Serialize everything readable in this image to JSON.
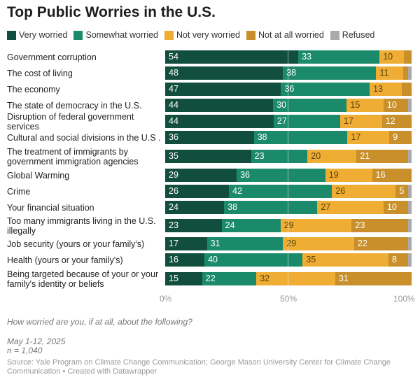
{
  "chart_data": {
    "type": "stacked-bar-horizontal",
    "title": "Top Public Worries in the U.S.",
    "xlim": [
      0,
      100
    ],
    "xticks": [
      "0%",
      "50%",
      "100%"
    ],
    "legend_position": "top",
    "series": [
      {
        "name": "Very worried",
        "color": "#124e3d",
        "label_color": "#ffffff"
      },
      {
        "name": "Somewhat worried",
        "color": "#1b8a6b",
        "label_color": "#ffffff"
      },
      {
        "name": "Not very worried",
        "color": "#efad33",
        "label_color": "#5a4210"
      },
      {
        "name": "Not at all worried",
        "color": "#c88f2a",
        "label_color": "#ffffff"
      },
      {
        "name": "Refused",
        "color": "#aaaaaa",
        "label_color": "#ffffff"
      }
    ],
    "categories": [
      "Government corruption",
      "The cost of living",
      "The economy",
      "The state of democracy in the U.S.",
      "Disruption of federal government services",
      "Cultural and social divisions in the U.S .",
      "The treatment of immigrants by government immigration agencies",
      "Global Warming",
      "Crime",
      "Your financial situation",
      "Too many immigrants living in the U.S. illegally",
      "Job security (yours or your family's)",
      "Health (yours or your family's)",
      "Being targeted because of your or your family's identity or beliefs"
    ],
    "values": [
      [
        54,
        33,
        10,
        3,
        0
      ],
      [
        48,
        38,
        11,
        2,
        1
      ],
      [
        47,
        36,
        13,
        4,
        0
      ],
      [
        44,
        30,
        15,
        10,
        1
      ],
      [
        44,
        27,
        17,
        12,
        0
      ],
      [
        36,
        38,
        17,
        9,
        0
      ],
      [
        35,
        23,
        20,
        21,
        1
      ],
      [
        29,
        36,
        19,
        16,
        0
      ],
      [
        26,
        42,
        26,
        5,
        1
      ],
      [
        24,
        38,
        27,
        10,
        1
      ],
      [
        23,
        24,
        29,
        23,
        1
      ],
      [
        17,
        31,
        29,
        22,
        1
      ],
      [
        16,
        40,
        35,
        8,
        1
      ],
      [
        15,
        22,
        32,
        31,
        0
      ]
    ],
    "label_min": 5
  },
  "notes": {
    "question": "How worried are you, if at all, about the following?",
    "date": "May 1-12, 2025",
    "n": "n = 1,040",
    "source": "Source: Yale Program on Climate Change Communication; George Mason University Center for Climate Change Communication • Created with Datawrapper"
  }
}
